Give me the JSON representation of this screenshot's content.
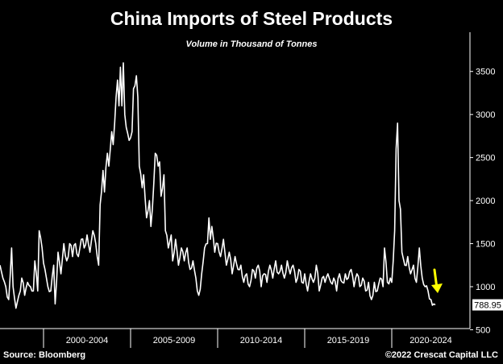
{
  "title": "China Imports of Steel Products",
  "subtitle": "Volume in Thousand of Tonnes",
  "source": "Source: Bloomberg",
  "copyright": "©2022 Crescat Capital LLC",
  "colors": {
    "background": "#000000",
    "line": "#ffffff",
    "arrow": "#ffff00"
  },
  "chart_data": {
    "type": "line",
    "title": "China Imports of Steel Products",
    "subtitle": "Volume in Thousand of Tonnes",
    "x_unit": "month",
    "x_start": "1997-07",
    "x_end": "2022-07",
    "ylim": [
      420,
      3750
    ],
    "y_ticks": [
      500,
      1000,
      1500,
      2000,
      2500,
      3000,
      3500
    ],
    "y_axis_position": "right",
    "x_period_labels": [
      "2000-2004",
      "2005-2009",
      "2010-2014",
      "2015-2019",
      "2020-2024"
    ],
    "last_value_label": "788.95",
    "last_value": 788.95,
    "grid": false,
    "series": [
      {
        "anchors": [
          [
            "1997-07",
            1250
          ],
          [
            "1997-09",
            1100
          ],
          [
            "1997-11",
            1000
          ],
          [
            "1998-01",
            850
          ],
          [
            "1998-03",
            1450
          ],
          [
            "1998-04",
            1000
          ],
          [
            "1998-06",
            750
          ],
          [
            "1998-08",
            900
          ],
          [
            "1998-10",
            1100
          ],
          [
            "1998-12",
            900
          ],
          [
            "1999-02",
            1050
          ],
          [
            "1999-04",
            1000
          ],
          [
            "1999-06",
            950
          ],
          [
            "1999-07",
            1300
          ],
          [
            "1999-09",
            950
          ],
          [
            "1999-10",
            1650
          ],
          [
            "1999-12",
            1450
          ],
          [
            "2000-02",
            1200
          ],
          [
            "2000-04",
            1000
          ],
          [
            "2000-06",
            950
          ],
          [
            "2000-08",
            1250
          ],
          [
            "2000-09",
            800
          ],
          [
            "2000-11",
            1400
          ],
          [
            "2001-01",
            1150
          ],
          [
            "2001-03",
            1500
          ],
          [
            "2001-05",
            1300
          ],
          [
            "2001-07",
            1500
          ],
          [
            "2001-09",
            1350
          ],
          [
            "2001-11",
            1500
          ],
          [
            "2002-01",
            1350
          ],
          [
            "2002-03",
            1550
          ],
          [
            "2002-05",
            1450
          ],
          [
            "2002-07",
            1600
          ],
          [
            "2002-09",
            1400
          ],
          [
            "2002-11",
            1650
          ],
          [
            "2003-01",
            1500
          ],
          [
            "2003-03",
            1250
          ],
          [
            "2003-04",
            1950
          ],
          [
            "2003-06",
            2350
          ],
          [
            "2003-07",
            2100
          ],
          [
            "2003-09",
            2550
          ],
          [
            "2003-10",
            2400
          ],
          [
            "2003-12",
            2800
          ],
          [
            "2004-01",
            2650
          ],
          [
            "2004-03",
            3200
          ],
          [
            "2004-04",
            3400
          ],
          [
            "2004-05",
            3100
          ],
          [
            "2004-06",
            3550
          ],
          [
            "2004-07",
            3100
          ],
          [
            "2004-08",
            3600
          ],
          [
            "2004-09",
            3000
          ],
          [
            "2004-10",
            2850
          ],
          [
            "2004-12",
            2700
          ],
          [
            "2005-02",
            2800
          ],
          [
            "2005-03",
            3300
          ],
          [
            "2005-05",
            3450
          ],
          [
            "2005-06",
            3200
          ],
          [
            "2005-07",
            2400
          ],
          [
            "2005-09",
            2150
          ],
          [
            "2005-10",
            2300
          ],
          [
            "2005-12",
            1800
          ],
          [
            "2006-02",
            2000
          ],
          [
            "2006-03",
            1700
          ],
          [
            "2006-05",
            2200
          ],
          [
            "2006-06",
            2550
          ],
          [
            "2006-08",
            2400
          ],
          [
            "2006-09",
            2450
          ],
          [
            "2006-10",
            2050
          ],
          [
            "2006-12",
            2300
          ],
          [
            "2007-01",
            1650
          ],
          [
            "2007-03",
            1450
          ],
          [
            "2007-05",
            1600
          ],
          [
            "2007-06",
            1300
          ],
          [
            "2007-08",
            1550
          ],
          [
            "2007-10",
            1250
          ],
          [
            "2007-12",
            1450
          ],
          [
            "2008-02",
            1300
          ],
          [
            "2008-04",
            1450
          ],
          [
            "2008-06",
            1200
          ],
          [
            "2008-08",
            1300
          ],
          [
            "2008-10",
            1100
          ],
          [
            "2008-12",
            900
          ],
          [
            "2009-02",
            1150
          ],
          [
            "2009-04",
            1450
          ],
          [
            "2009-06",
            1500
          ],
          [
            "2009-07",
            1800
          ],
          [
            "2009-08",
            1550
          ],
          [
            "2009-09",
            1700
          ],
          [
            "2009-11",
            1400
          ],
          [
            "2010-01",
            1500
          ],
          [
            "2010-03",
            1350
          ],
          [
            "2010-05",
            1550
          ],
          [
            "2010-07",
            1250
          ],
          [
            "2010-09",
            1400
          ],
          [
            "2010-11",
            1150
          ],
          [
            "2011-01",
            1350
          ],
          [
            "2011-03",
            1200
          ],
          [
            "2011-05",
            1250
          ],
          [
            "2011-07",
            1050
          ],
          [
            "2011-09",
            1150
          ],
          [
            "2011-11",
            1000
          ],
          [
            "2012-01",
            1200
          ],
          [
            "2012-03",
            1100
          ],
          [
            "2012-05",
            1250
          ],
          [
            "2012-07",
            1000
          ],
          [
            "2012-09",
            1150
          ],
          [
            "2012-11",
            1050
          ],
          [
            "2013-01",
            1250
          ],
          [
            "2013-03",
            1100
          ],
          [
            "2013-05",
            1300
          ],
          [
            "2013-07",
            1150
          ],
          [
            "2013-09",
            1250
          ],
          [
            "2013-11",
            1100
          ],
          [
            "2014-01",
            1300
          ],
          [
            "2014-03",
            1150
          ],
          [
            "2014-05",
            1250
          ],
          [
            "2014-07",
            1050
          ],
          [
            "2014-09",
            1200
          ],
          [
            "2014-11",
            1050
          ],
          [
            "2015-01",
            1150
          ],
          [
            "2015-03",
            950
          ],
          [
            "2015-05",
            1150
          ],
          [
            "2015-07",
            1050
          ],
          [
            "2015-09",
            1250
          ],
          [
            "2015-11",
            950
          ],
          [
            "2016-01",
            1100
          ],
          [
            "2016-03",
            1050
          ],
          [
            "2016-05",
            1150
          ],
          [
            "2016-07",
            1050
          ],
          [
            "2016-09",
            1100
          ],
          [
            "2016-11",
            950
          ],
          [
            "2017-01",
            1150
          ],
          [
            "2017-03",
            1050
          ],
          [
            "2017-05",
            1150
          ],
          [
            "2017-07",
            1100
          ],
          [
            "2017-09",
            1200
          ],
          [
            "2017-11",
            1000
          ],
          [
            "2018-01",
            1150
          ],
          [
            "2018-03",
            1000
          ],
          [
            "2018-05",
            1100
          ],
          [
            "2018-07",
            950
          ],
          [
            "2018-09",
            1050
          ],
          [
            "2018-11",
            850
          ],
          [
            "2019-01",
            1050
          ],
          [
            "2019-03",
            950
          ],
          [
            "2019-05",
            1100
          ],
          [
            "2019-07",
            1000
          ],
          [
            "2019-08",
            1450
          ],
          [
            "2019-10",
            1050
          ],
          [
            "2019-12",
            1100
          ],
          [
            "2020-01",
            1050
          ],
          [
            "2020-02",
            1300
          ],
          [
            "2020-03",
            1650
          ],
          [
            "2020-04",
            2600
          ],
          [
            "2020-05",
            2900
          ],
          [
            "2020-06",
            2000
          ],
          [
            "2020-07",
            1900
          ],
          [
            "2020-08",
            1400
          ],
          [
            "2020-10",
            1250
          ],
          [
            "2020-12",
            1350
          ],
          [
            "2021-02",
            1150
          ],
          [
            "2021-04",
            1250
          ],
          [
            "2021-06",
            1050
          ],
          [
            "2021-08",
            1450
          ],
          [
            "2021-10",
            1100
          ],
          [
            "2021-12",
            1000
          ],
          [
            "2022-02",
            950
          ],
          [
            "2022-04",
            850
          ],
          [
            "2022-06",
            800
          ],
          [
            "2022-07",
            788.95
          ]
        ]
      }
    ]
  }
}
